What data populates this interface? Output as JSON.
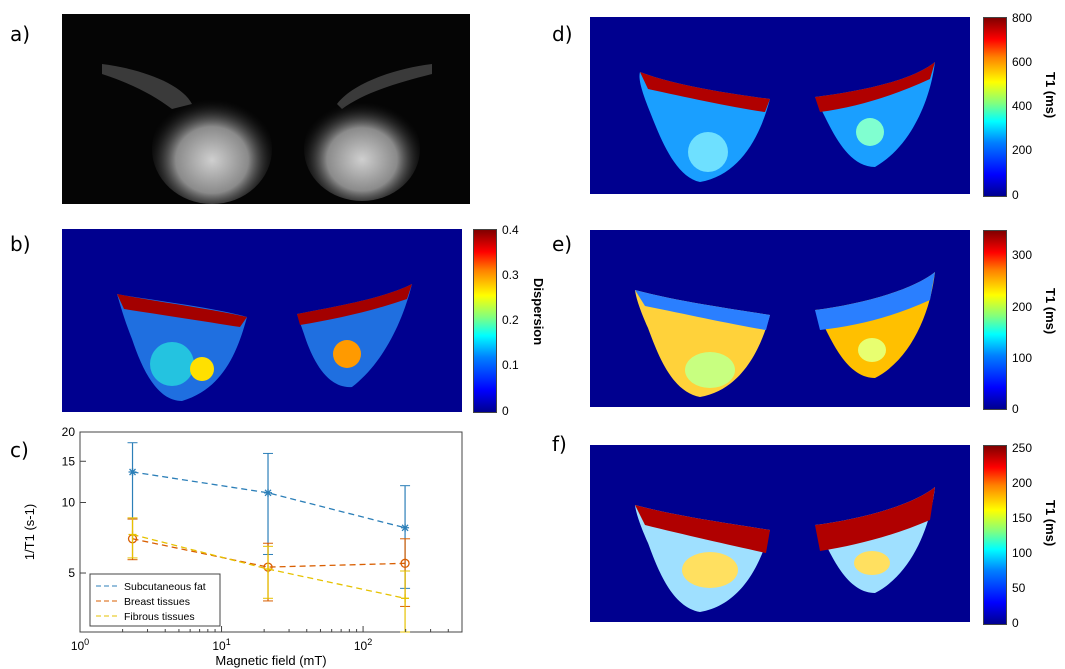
{
  "panel_labels": {
    "a": "a)",
    "b": "b)",
    "c": "c)",
    "d": "d)",
    "e": "e)",
    "f": "f)"
  },
  "colorbars": {
    "b": {
      "title": "Dispersion",
      "ticks": [
        "0.4",
        "0.3",
        "0.2",
        "0.1",
        "0"
      ]
    },
    "d": {
      "title": "T1 (ms)",
      "ticks": [
        "800",
        "600",
        "400",
        "200",
        "0"
      ]
    },
    "e": {
      "title": "T1 (ms)",
      "ticks": [
        "300",
        "200",
        "100",
        "0"
      ]
    },
    "f": {
      "title": "T1 (ms)",
      "ticks": [
        "250",
        "200",
        "150",
        "100",
        "50",
        "0"
      ]
    }
  },
  "chart_data": {
    "type": "line",
    "xlabel": "Magnetic field (mT)",
    "ylabel": "1/T1 (s-1)",
    "xscale": "log",
    "yscale": "log",
    "xlim": [
      1,
      500
    ],
    "ylim": [
      2.8,
      20
    ],
    "x_ticks": [
      "10^0",
      "10^1",
      "10^2"
    ],
    "y_ticks": [
      "20",
      "15",
      "10",
      "5"
    ],
    "legend_position": "lower-left",
    "series": [
      {
        "name": "Subcutaneous fat",
        "color": "#2c7fb8",
        "marker": "star",
        "x": [
          2.35,
          21.3,
          198
        ],
        "y": [
          13.5,
          11.0,
          7.8
        ],
        "err_low": [
          5.0,
          5.0,
          3.5
        ],
        "err_high": [
          4.5,
          5.2,
          4.0
        ]
      },
      {
        "name": "Breast tissues",
        "color": "#d95f02",
        "marker": "circle",
        "x": [
          2.35,
          21.3,
          198
        ],
        "y": [
          7.0,
          5.3,
          5.5
        ],
        "err_low": [
          1.3,
          1.5,
          1.9
        ],
        "err_high": [
          1.5,
          1.4,
          1.5
        ]
      },
      {
        "name": "Fibrous tissues",
        "color": "#e6c200",
        "marker": "plus",
        "x": [
          2.35,
          21.3,
          198
        ],
        "y": [
          7.3,
          5.2,
          3.9
        ],
        "err_low": [
          1.5,
          1.3,
          1.1
        ],
        "err_high": [
          1.3,
          1.3,
          1.2
        ]
      }
    ]
  }
}
